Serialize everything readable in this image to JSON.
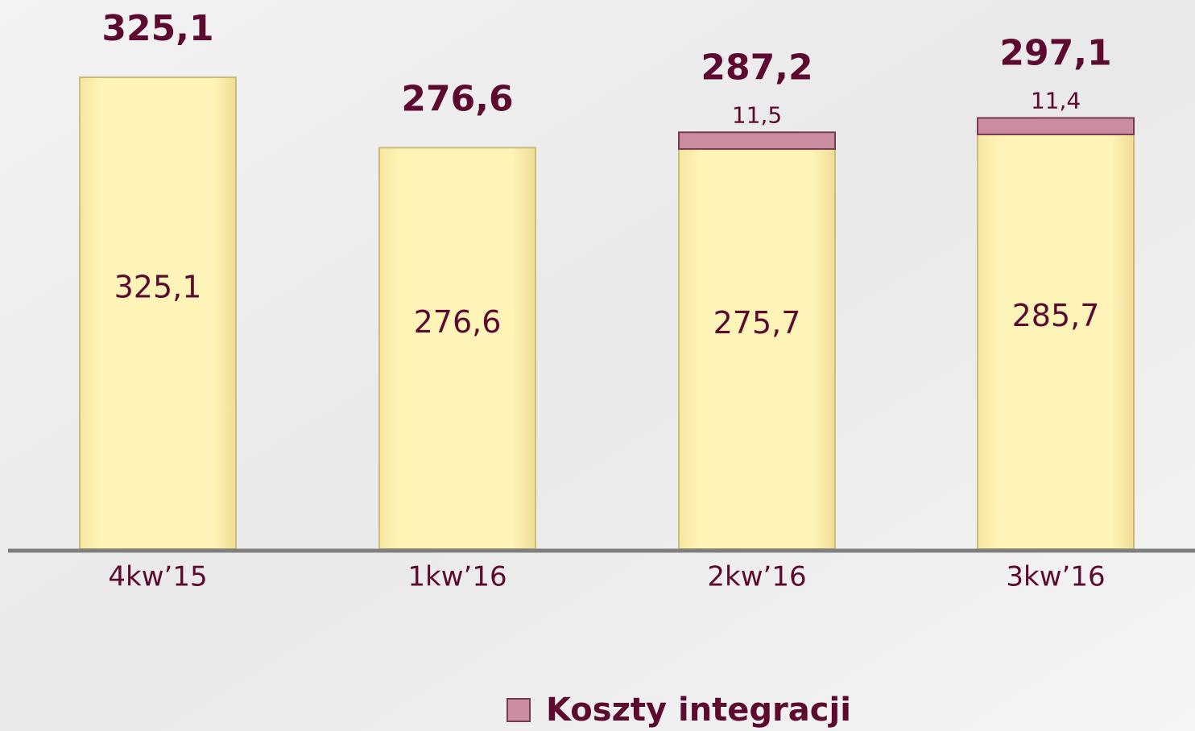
{
  "chart_data": {
    "type": "stacked-bar",
    "categories": [
      "4kw’15",
      "1kw’16",
      "2kw’16",
      "3kw’16"
    ],
    "series": [
      {
        "color": "#fff1b0",
        "values": [
          325.1,
          276.6,
          275.7,
          285.7
        ],
        "value_labels": [
          "325,1",
          "276,6",
          "275,7",
          "285,7"
        ]
      },
      {
        "name": "Koszty integracji",
        "color": "#c98ca0",
        "values": [
          null,
          null,
          11.5,
          11.4
        ],
        "value_labels": [
          null,
          null,
          "11,5",
          "11,4"
        ]
      }
    ],
    "totals": [
      325.1,
      276.6,
      287.2,
      297.1
    ],
    "total_labels": [
      "325,1",
      "276,6",
      "287,2",
      "297,1"
    ]
  }
}
